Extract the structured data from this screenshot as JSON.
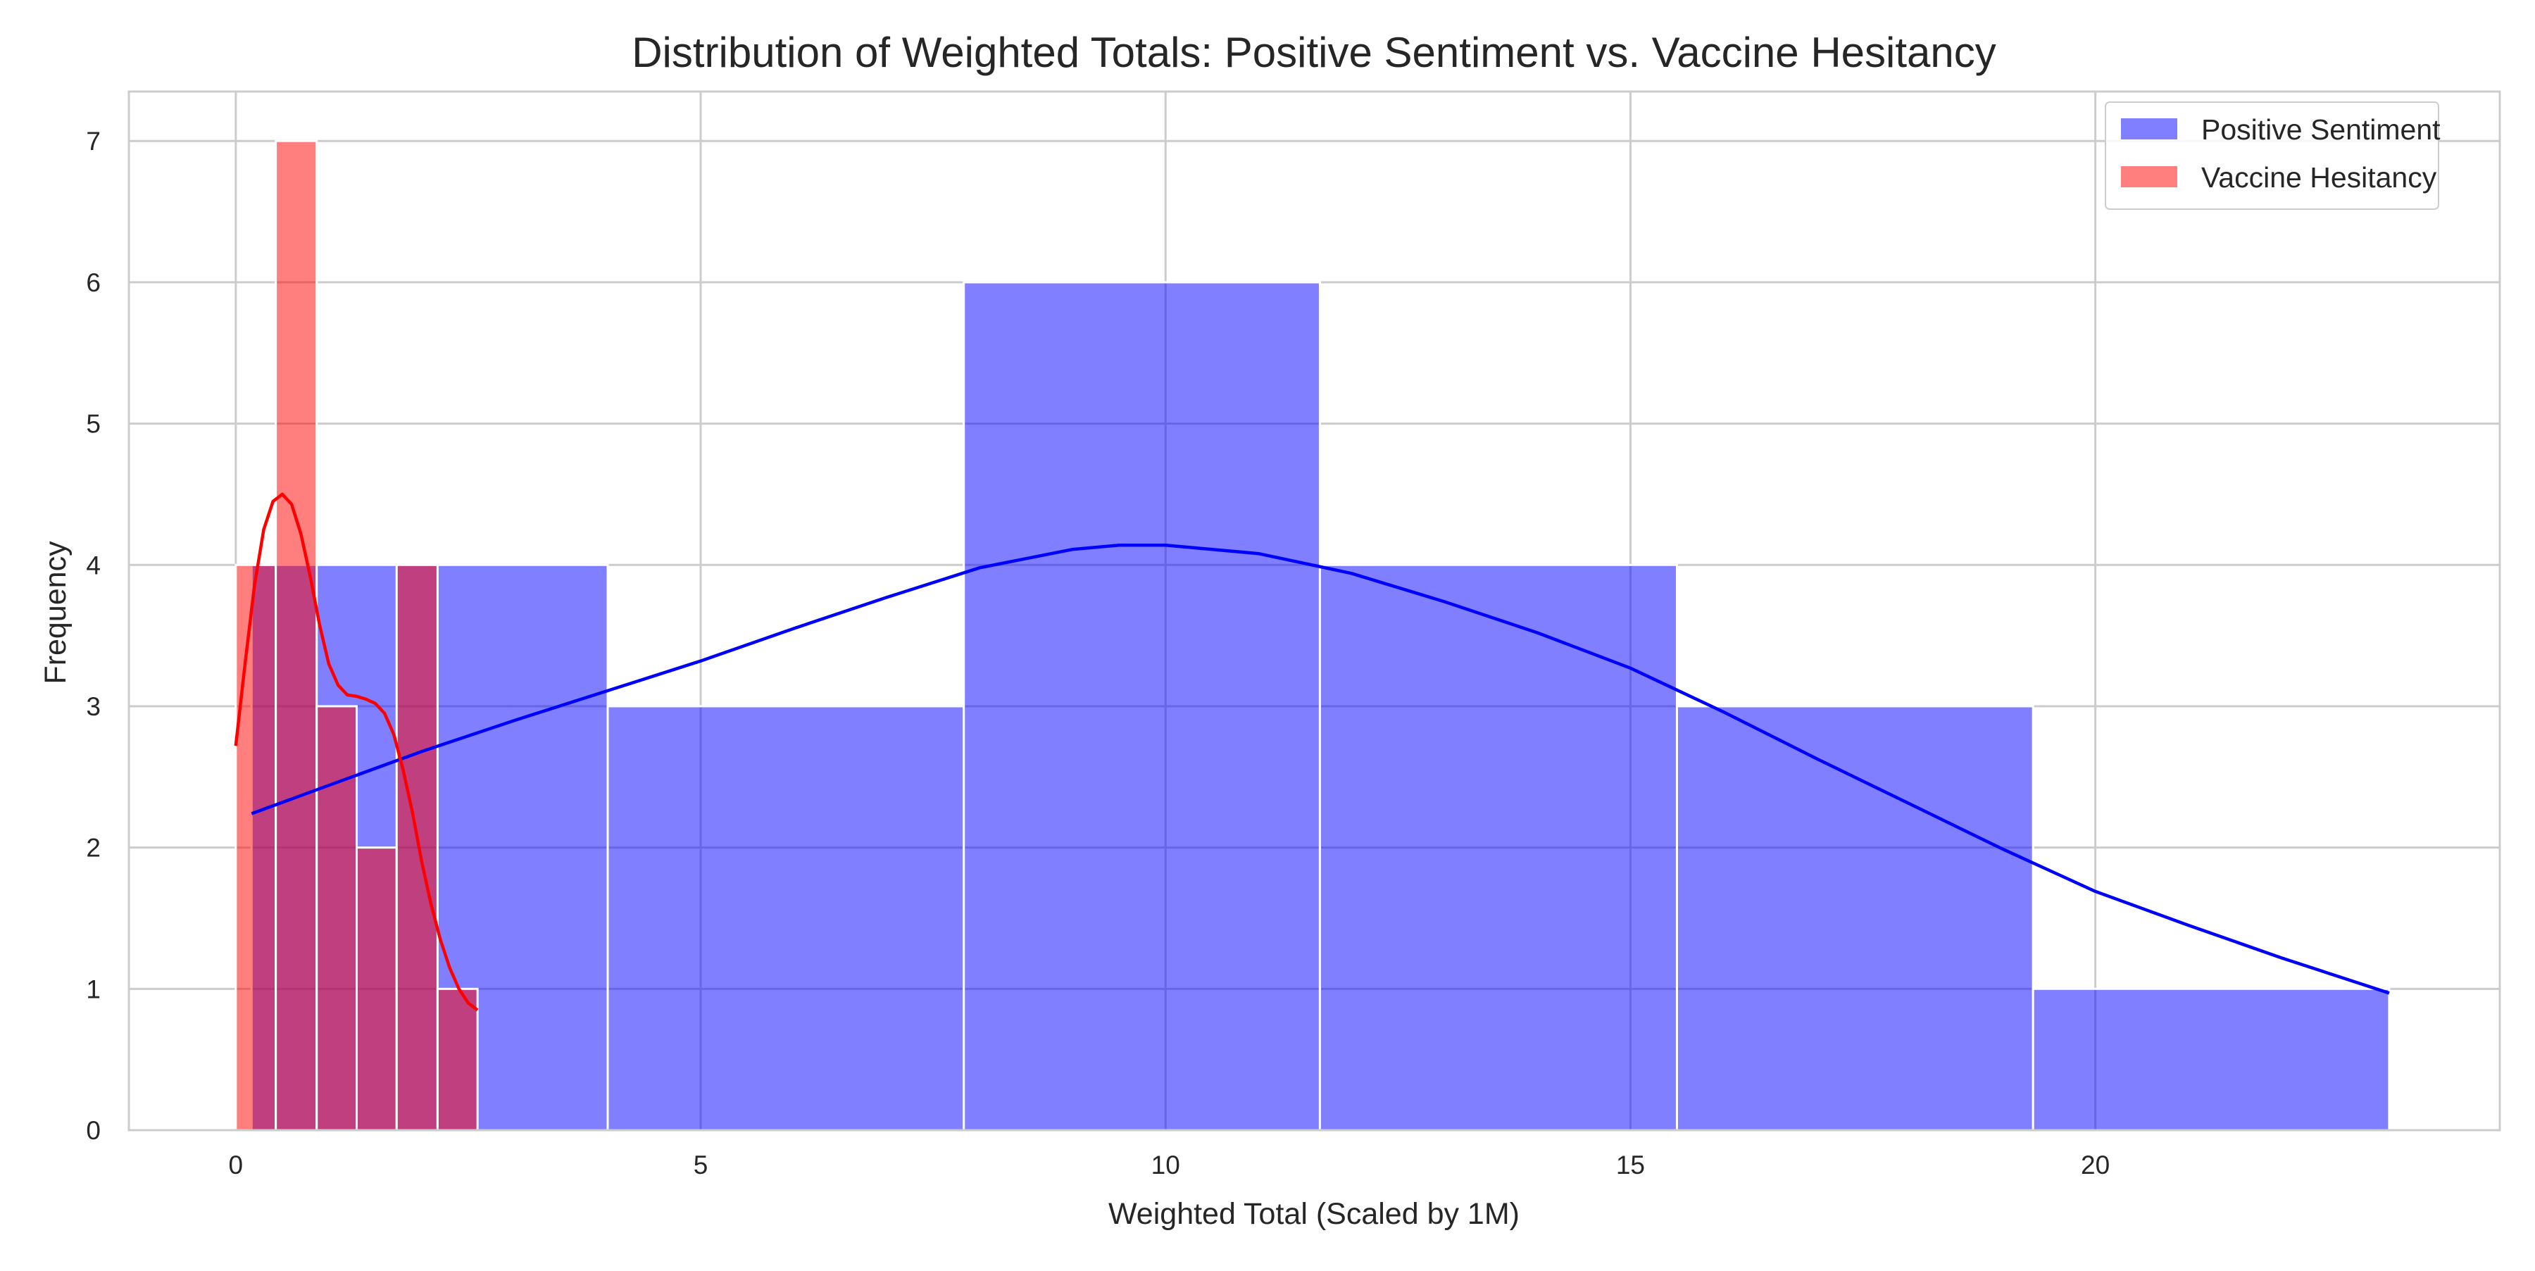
{
  "chart_data": {
    "type": "histogram",
    "title": "Distribution of Weighted Totals: Positive Sentiment vs. Vaccine Hesitancy",
    "xlabel": "Weighted Total (Scaled by 1M)",
    "ylabel": "Frequency",
    "xlim": [
      -1.15,
      24.35
    ],
    "ylim": [
      0,
      7.35
    ],
    "xticks": [
      0,
      5,
      10,
      15,
      20
    ],
    "yticks": [
      0,
      1,
      2,
      3,
      4,
      5,
      6,
      7
    ],
    "grid": true,
    "legend_position": "top-right",
    "series": [
      {
        "name": "Positive Sentiment",
        "color": "#0000ff",
        "bins": [
          {
            "x0": 0.17,
            "x1": 4.0,
            "count": 4
          },
          {
            "x0": 4.0,
            "x1": 7.83,
            "count": 3
          },
          {
            "x0": 7.83,
            "x1": 11.66,
            "count": 6
          },
          {
            "x0": 11.66,
            "x1": 15.5,
            "count": 4
          },
          {
            "x0": 15.5,
            "x1": 19.33,
            "count": 3
          },
          {
            "x0": 19.33,
            "x1": 23.16,
            "count": 1
          }
        ],
        "kde": [
          [
            0.17,
            2.24
          ],
          [
            1.0,
            2.44
          ],
          [
            2.0,
            2.68
          ],
          [
            3.0,
            2.9
          ],
          [
            4.0,
            3.11
          ],
          [
            5.0,
            3.32
          ],
          [
            6.0,
            3.55
          ],
          [
            7.0,
            3.77
          ],
          [
            8.0,
            3.98
          ],
          [
            9.0,
            4.11
          ],
          [
            9.5,
            4.14
          ],
          [
            10.0,
            4.14
          ],
          [
            11.0,
            4.08
          ],
          [
            12.0,
            3.94
          ],
          [
            13.0,
            3.74
          ],
          [
            14.0,
            3.52
          ],
          [
            15.0,
            3.27
          ],
          [
            16.0,
            2.96
          ],
          [
            17.0,
            2.63
          ],
          [
            18.0,
            2.31
          ],
          [
            19.0,
            1.99
          ],
          [
            20.0,
            1.69
          ],
          [
            21.0,
            1.45
          ],
          [
            22.0,
            1.22
          ],
          [
            23.16,
            0.97
          ]
        ]
      },
      {
        "name": "Vaccine Hesitancy",
        "color": "#ff0000",
        "bins": [
          {
            "x0": 0.0,
            "x1": 0.43,
            "count": 4
          },
          {
            "x0": 0.43,
            "x1": 0.87,
            "count": 7
          },
          {
            "x0": 0.87,
            "x1": 1.3,
            "count": 3
          },
          {
            "x0": 1.3,
            "x1": 1.73,
            "count": 2
          },
          {
            "x0": 1.73,
            "x1": 2.17,
            "count": 4
          },
          {
            "x0": 2.17,
            "x1": 2.6,
            "count": 1
          }
        ],
        "kde": [
          [
            0.0,
            2.72
          ],
          [
            0.1,
            3.3
          ],
          [
            0.2,
            3.85
          ],
          [
            0.3,
            4.25
          ],
          [
            0.4,
            4.45
          ],
          [
            0.5,
            4.5
          ],
          [
            0.6,
            4.43
          ],
          [
            0.7,
            4.22
          ],
          [
            0.8,
            3.92
          ],
          [
            0.9,
            3.58
          ],
          [
            1.0,
            3.3
          ],
          [
            1.1,
            3.15
          ],
          [
            1.2,
            3.08
          ],
          [
            1.3,
            3.07
          ],
          [
            1.4,
            3.05
          ],
          [
            1.5,
            3.02
          ],
          [
            1.6,
            2.95
          ],
          [
            1.7,
            2.8
          ],
          [
            1.8,
            2.55
          ],
          [
            1.9,
            2.25
          ],
          [
            2.0,
            1.9
          ],
          [
            2.1,
            1.6
          ],
          [
            2.2,
            1.35
          ],
          [
            2.3,
            1.15
          ],
          [
            2.4,
            1.0
          ],
          [
            2.5,
            0.9
          ],
          [
            2.6,
            0.85
          ]
        ]
      }
    ]
  }
}
